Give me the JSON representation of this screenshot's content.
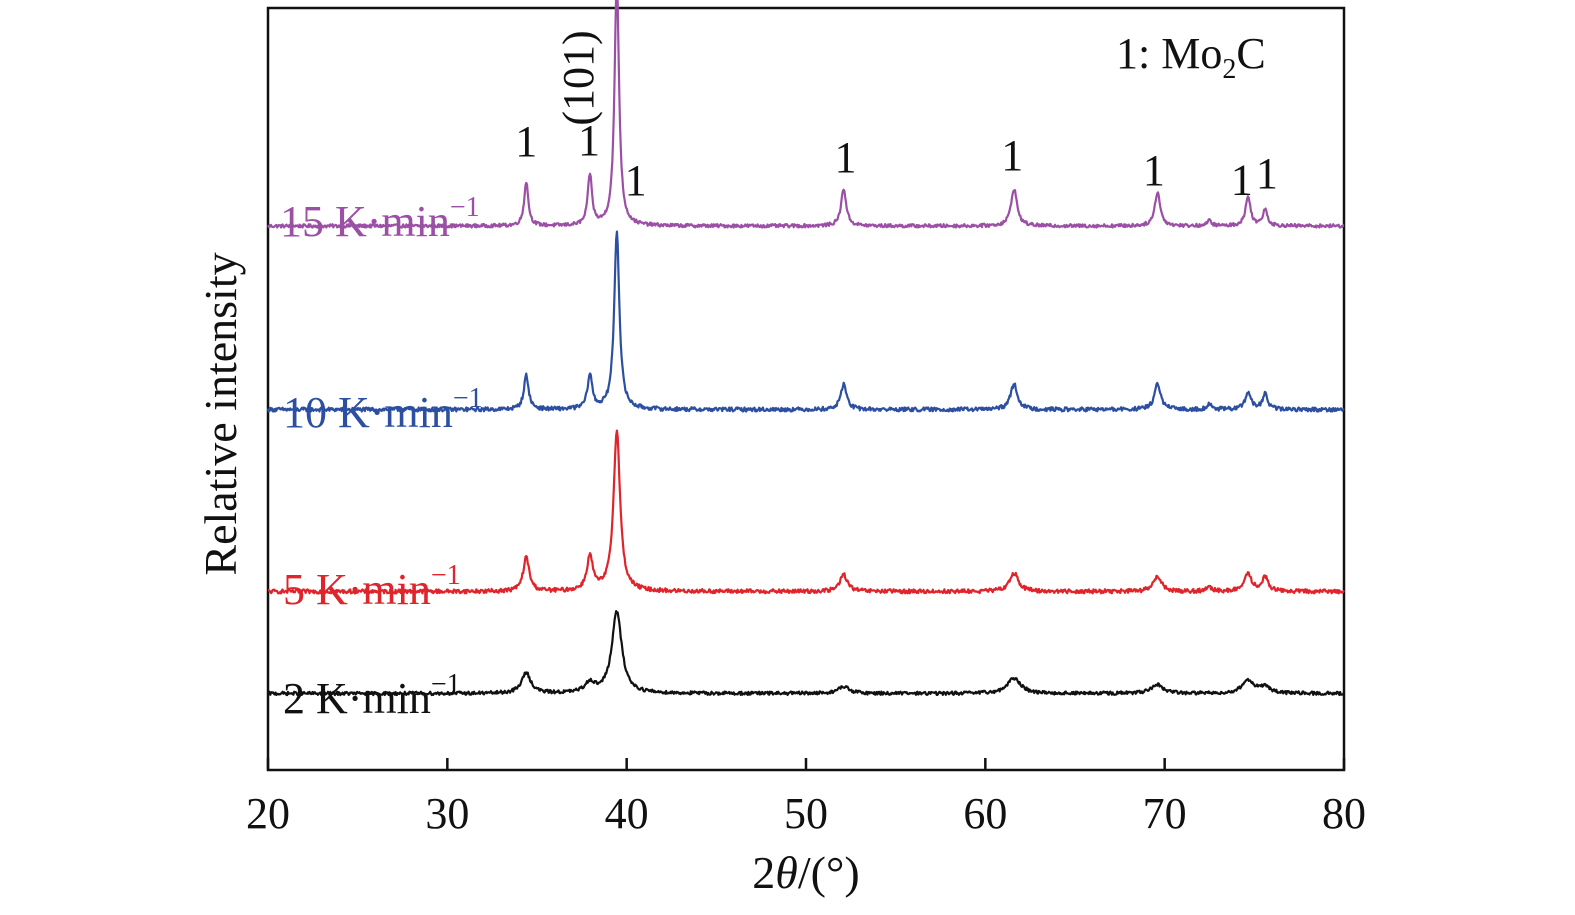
{
  "chart_data": {
    "type": "line",
    "title": "",
    "xlabel_prefix": "2",
    "xlabel_italic": "θ",
    "xlabel_suffix": "/(°)",
    "ylabel": "Relative intensity",
    "xlim": [
      20,
      80
    ],
    "xticks": [
      20,
      30,
      40,
      50,
      60,
      70,
      80
    ],
    "y_ticks_shown": false,
    "grid": false,
    "legend": {
      "marker": "1",
      "separator": ": ",
      "formula_main": "Mo",
      "formula_subscript": "2",
      "formula_tail": "C",
      "position": "top-right"
    },
    "miller_index": {
      "text": "(101)",
      "x": 37.3,
      "orientation": "vertical"
    },
    "peak_marker": "1",
    "peak_markers": [
      {
        "x": 34.4
      },
      {
        "x": 37.9
      },
      {
        "x": 40.5
      },
      {
        "x": 52.2
      },
      {
        "x": 61.5
      },
      {
        "x": 69.4
      },
      {
        "x": 74.3
      },
      {
        "x": 75.7
      }
    ],
    "peaks": [
      {
        "x": 34.4,
        "width": 0.14
      },
      {
        "x": 37.95,
        "width": 0.14
      },
      {
        "x": 39.45,
        "width": 0.15
      },
      {
        "x": 52.1,
        "width": 0.17
      },
      {
        "x": 61.6,
        "width": 0.2
      },
      {
        "x": 69.6,
        "width": 0.18
      },
      {
        "x": 72.5,
        "width": 0.15
      },
      {
        "x": 74.65,
        "width": 0.17
      },
      {
        "x": 75.6,
        "width": 0.15
      }
    ],
    "series": [
      {
        "name": "15 K·min",
        "superscript": "−1",
        "color": "#9b4fa5",
        "baseline": 0.0,
        "offset": 3.2,
        "noise": 0.01,
        "broadening": 1.0,
        "intensities": [
          0.26,
          0.3,
          1.45,
          0.22,
          0.22,
          0.2,
          0.03,
          0.17,
          0.1
        ]
      },
      {
        "name": "10 K·min",
        "superscript": "−1",
        "color": "#2d4fa2",
        "baseline": 0.0,
        "offset": 2.12,
        "noise": 0.012,
        "broadening": 1.15,
        "intensities": [
          0.2,
          0.2,
          1.05,
          0.15,
          0.15,
          0.15,
          0.03,
          0.1,
          0.09
        ]
      },
      {
        "name": "5 K·min",
        "superscript": "−1",
        "color": "#e0242b",
        "baseline": 0.0,
        "offset": 1.05,
        "noise": 0.012,
        "broadening": 1.45,
        "intensities": [
          0.2,
          0.2,
          0.95,
          0.1,
          0.11,
          0.09,
          0.02,
          0.1,
          0.08
        ]
      },
      {
        "name": "2 K·min",
        "superscript": "−1",
        "color": "#111111",
        "baseline": 0.0,
        "offset": 0.45,
        "noise": 0.01,
        "broadening": 2.2,
        "intensities": [
          0.12,
          0.06,
          0.48,
          0.04,
          0.09,
          0.05,
          0.0,
          0.08,
          0.04
        ]
      }
    ]
  }
}
